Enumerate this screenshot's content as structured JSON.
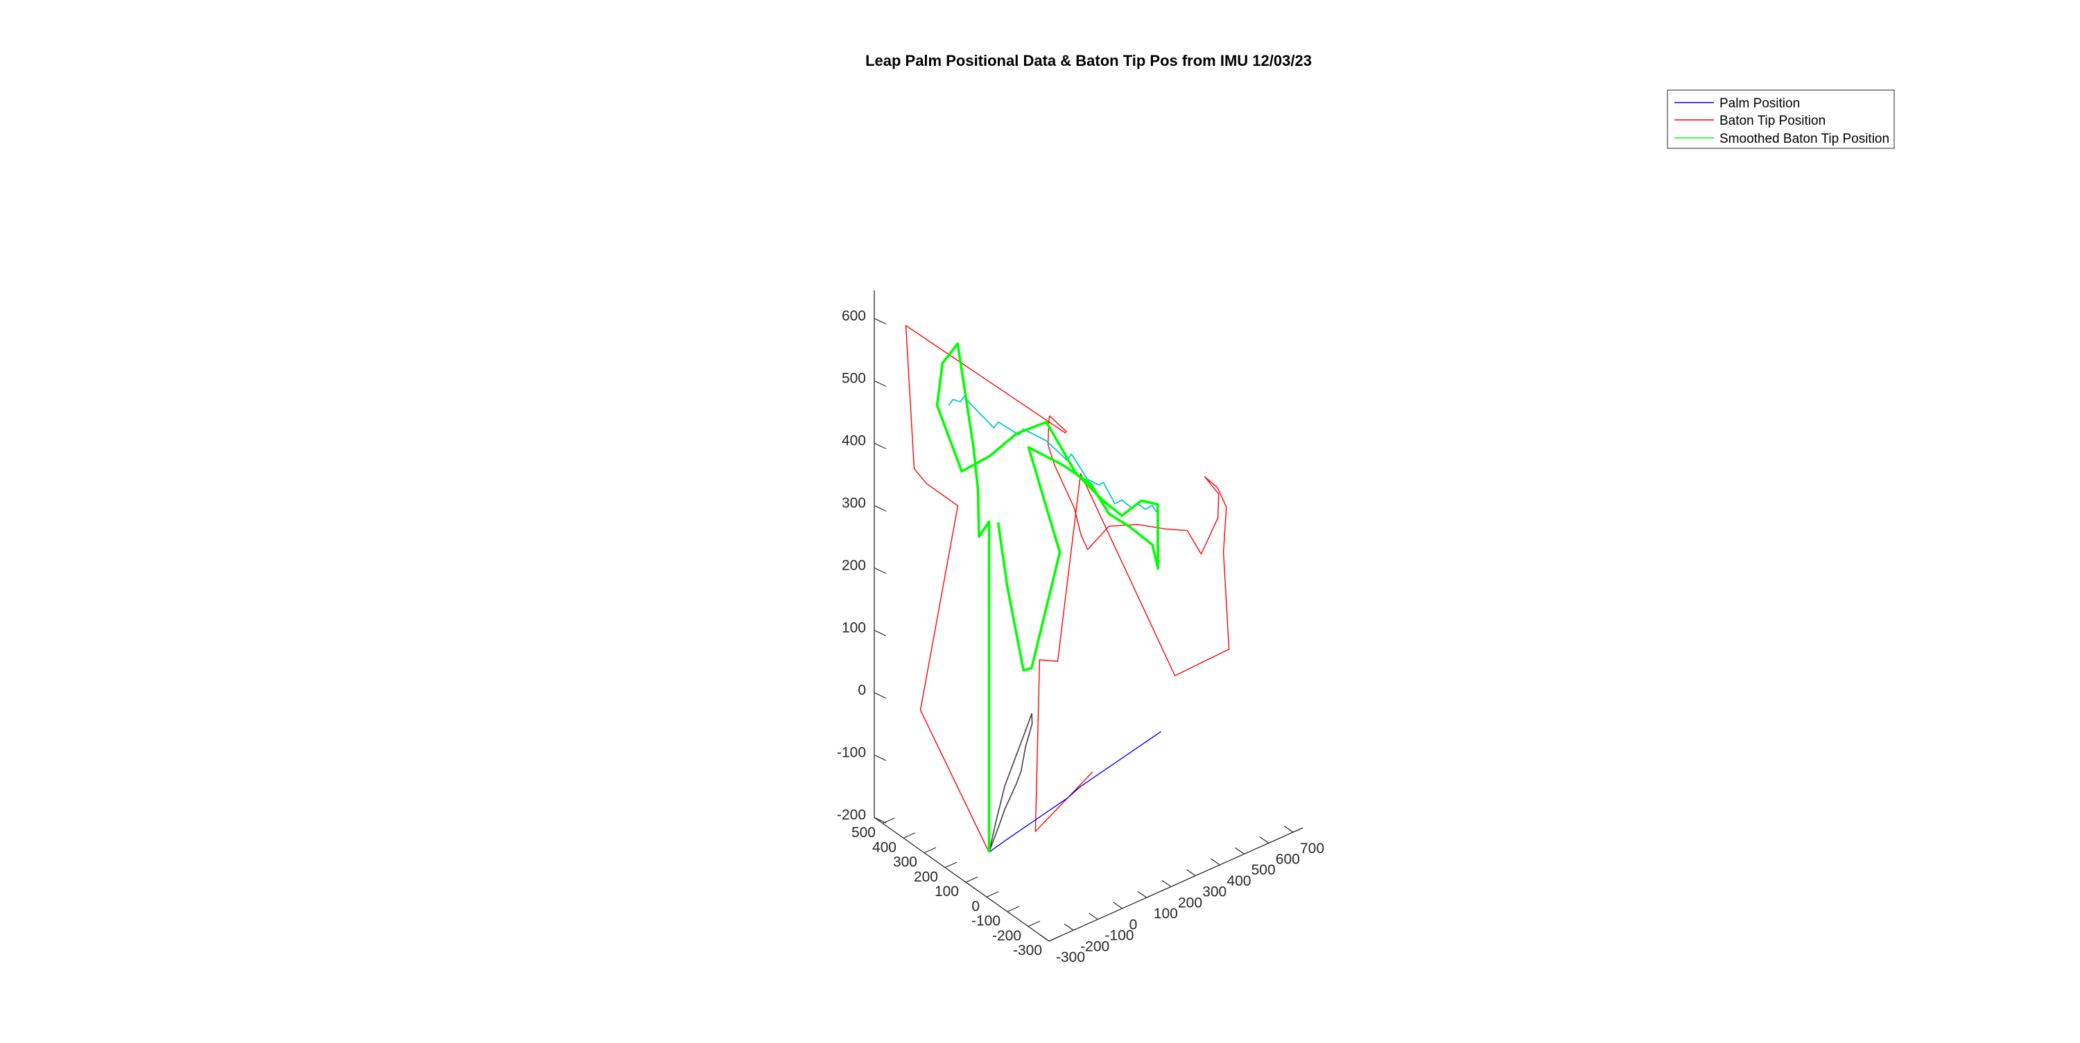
{
  "chart_data": {
    "type": "line",
    "projection": "3d",
    "title": "Leap Palm Positional Data & Baton Tip Pos from IMU 12/03/23",
    "axes": {
      "x": {
        "ticks": [
          "-300",
          "-200",
          "-100",
          "0",
          "100",
          "200",
          "300",
          "400",
          "500"
        ],
        "range": [
          -300,
          500
        ]
      },
      "y": {
        "ticks": [
          "-300",
          "-200",
          "-100",
          "0",
          "100",
          "200",
          "300",
          "400",
          "500",
          "600",
          "700"
        ],
        "range": [
          -300,
          700
        ]
      },
      "z": {
        "ticks": [
          "-200",
          "-100",
          "0",
          "100",
          "200",
          "300",
          "400",
          "500",
          "600"
        ],
        "range": [
          -200,
          600
        ]
      }
    },
    "grid": false,
    "legend_placement": "top-right",
    "legend": [
      {
        "label": "Palm Position",
        "color": "#0000ff"
      },
      {
        "label": "Baton Tip Position",
        "color": "#ff0000"
      },
      {
        "label": "Smoothed Baton Tip Position",
        "color": "#00ff00"
      }
    ],
    "series": [
      {
        "name": "Palm Position",
        "color": "#0000ff",
        "points": [
          [
            0,
            -290,
            -130
          ],
          [
            20,
            -200,
            -130
          ],
          [
            40,
            -100,
            -130
          ],
          [
            60,
            0,
            -130
          ],
          [
            80,
            100,
            -130
          ],
          [
            90,
            160,
            -125
          ],
          [
            110,
            260,
            -125
          ],
          [
            130,
            360,
            -125
          ],
          [
            150,
            460,
            -125
          ],
          [
            170,
            560,
            -125
          ]
        ]
      },
      {
        "name": "Baton Tip Position",
        "color": "#ff0000",
        "points": [
          [
            0,
            -290,
            -130
          ],
          [
            330,
            -290,
            20
          ],
          [
            150,
            -290,
            390
          ],
          [
            300,
            -290,
            390
          ],
          [
            360,
            -290,
            400
          ],
          [
            400,
            -290,
            620
          ],
          [
            150,
            150,
            430
          ],
          [
            180,
            180,
            420
          ],
          [
            120,
            60,
            480
          ],
          [
            100,
            40,
            480
          ],
          [
            80,
            20,
            450
          ],
          [
            60,
            30,
            420
          ],
          [
            40,
            40,
            400
          ],
          [
            20,
            50,
            380
          ],
          [
            0,
            60,
            360
          ],
          [
            -20,
            70,
            320
          ],
          [
            -40,
            80,
            300
          ],
          [
            -60,
            150,
            330
          ],
          [
            -80,
            250,
            320
          ],
          [
            -100,
            350,
            300
          ],
          [
            -120,
            420,
            290
          ],
          [
            -140,
            460,
            250
          ],
          [
            -150,
            520,
            300
          ],
          [
            -130,
            540,
            330
          ],
          [
            -110,
            500,
            360
          ],
          [
            -100,
            560,
            330
          ],
          [
            -120,
            580,
            300
          ],
          [
            -200,
            500,
            260
          ],
          [
            -250,
            480,
            120
          ],
          [
            -260,
            250,
            120
          ],
          [
            -100,
            0,
            450
          ],
          [
            -60,
            -60,
            150
          ],
          [
            -20,
            -100,
            150
          ],
          [
            0,
            -100,
            -130
          ],
          [
            -40,
            100,
            -60
          ]
        ]
      },
      {
        "name": "Smoothed Baton Tip Position",
        "color": "#00ff00",
        "points": [
          [
            0,
            -290,
            -130
          ],
          [
            0,
            -290,
            400
          ],
          [
            60,
            -280,
            360
          ],
          [
            100,
            -250,
            420
          ],
          [
            180,
            -200,
            460
          ],
          [
            280,
            -180,
            600
          ],
          [
            330,
            -200,
            560
          ],
          [
            320,
            -230,
            500
          ],
          [
            260,
            -180,
            400
          ],
          [
            220,
            -100,
            420
          ],
          [
            160,
            -40,
            460
          ],
          [
            100,
            30,
            480
          ],
          [
            40,
            100,
            400
          ],
          [
            -20,
            160,
            360
          ],
          [
            -40,
            220,
            330
          ],
          [
            -40,
            300,
            340
          ],
          [
            -60,
            350,
            330
          ],
          [
            -120,
            300,
            250
          ],
          [
            -140,
            260,
            300
          ],
          [
            -100,
            200,
            330
          ],
          [
            -60,
            150,
            350
          ],
          [
            -30,
            100,
            400
          ],
          [
            20,
            30,
            430
          ],
          [
            80,
            -60,
            460
          ],
          [
            0,
            0,
            300
          ],
          [
            -40,
            -150,
            150
          ],
          [
            -60,
            -200,
            160
          ],
          [
            -40,
            -250,
            300
          ],
          [
            -20,
            -270,
            400
          ]
        ]
      },
      {
        "name": "",
        "color": "#00c8c8",
        "points": [
          [
            300,
            -200,
            500
          ],
          [
            290,
            -190,
            510
          ],
          [
            280,
            -170,
            505
          ],
          [
            270,
            -160,
            515
          ],
          [
            260,
            -150,
            505
          ],
          [
            200,
            -100,
            470
          ],
          [
            190,
            -90,
            480
          ],
          [
            150,
            -40,
            460
          ],
          [
            140,
            -30,
            470
          ],
          [
            100,
            30,
            450
          ],
          [
            60,
            80,
            420
          ],
          [
            50,
            90,
            430
          ],
          [
            20,
            130,
            390
          ],
          [
            0,
            160,
            380
          ],
          [
            -10,
            170,
            385
          ],
          [
            -30,
            200,
            350
          ],
          [
            -40,
            220,
            355
          ],
          [
            -50,
            250,
            340
          ],
          [
            -60,
            270,
            345
          ],
          [
            -70,
            290,
            335
          ],
          [
            -80,
            310,
            340
          ],
          [
            -90,
            320,
            330
          ]
        ]
      },
      {
        "name": "",
        "color": "#404040",
        "points": [
          [
            0,
            -290,
            -130
          ],
          [
            -20,
            -280,
            -80
          ],
          [
            -40,
            -260,
            -20
          ],
          [
            -60,
            -240,
            20
          ],
          [
            -80,
            -220,
            60
          ],
          [
            -100,
            -200,
            100
          ],
          [
            -90,
            -190,
            80
          ],
          [
            -70,
            -200,
            40
          ],
          [
            -60,
            -210,
            0
          ],
          [
            -50,
            -220,
            -20
          ],
          [
            -30,
            -250,
            -60
          ],
          [
            -20,
            -270,
            -90
          ],
          [
            -10,
            -280,
            -110
          ],
          [
            0,
            -290,
            -130
          ]
        ]
      }
    ]
  }
}
